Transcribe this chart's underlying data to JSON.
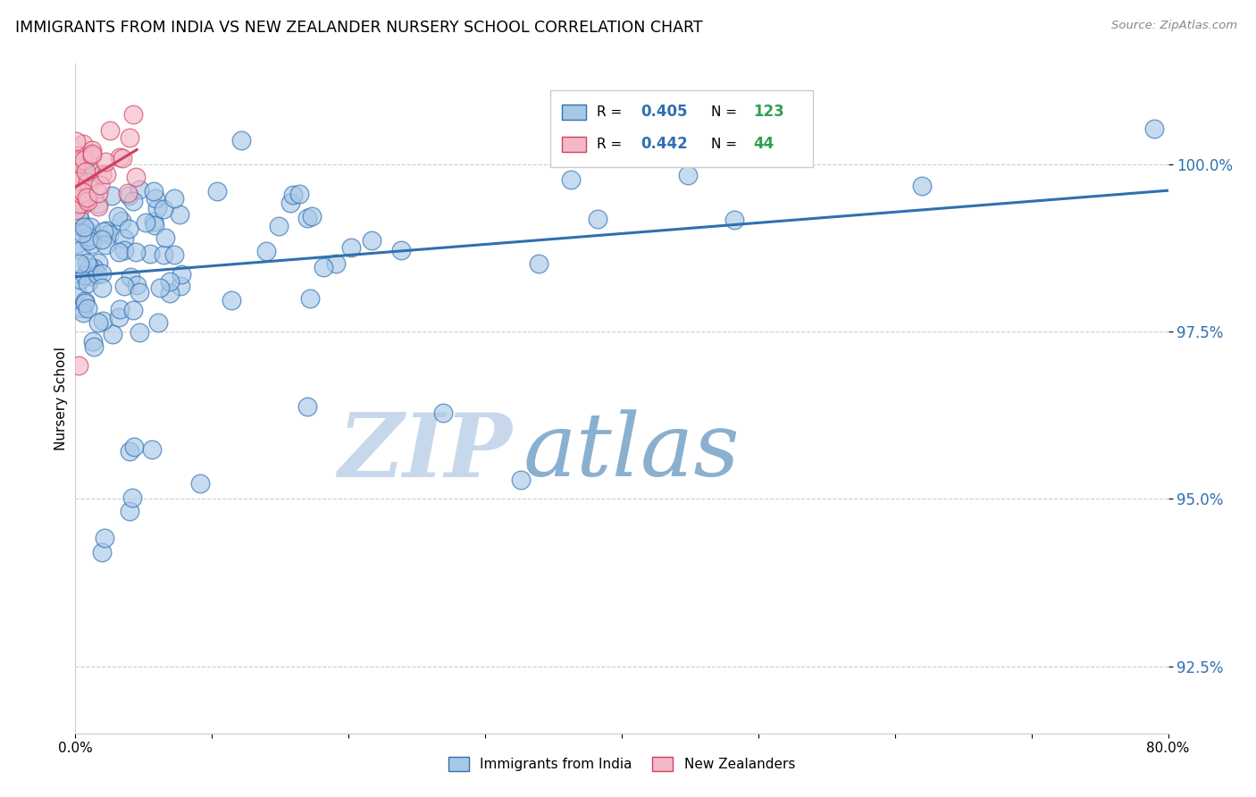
{
  "title": "IMMIGRANTS FROM INDIA VS NEW ZEALANDER NURSERY SCHOOL CORRELATION CHART",
  "source": "Source: ZipAtlas.com",
  "ylabel": "Nursery School",
  "yticks": [
    92.5,
    95.0,
    97.5,
    100.0
  ],
  "ytick_labels": [
    "92.5%",
    "95.0%",
    "97.5%",
    "100.0%"
  ],
  "xmin": 0.0,
  "xmax": 80.0,
  "ymin": 91.5,
  "ymax": 101.5,
  "legend_r1": "R = 0.405",
  "legend_n1": "N = 123",
  "legend_r2": "R = 0.442",
  "legend_n2": "N = 44",
  "blue_color": "#a8c8e8",
  "pink_color": "#f4b8c8",
  "trendline_blue": "#3070b0",
  "trendline_pink": "#d04060",
  "legend_r_color": "#3070b0",
  "legend_n_color": "#30a050",
  "watermark_zip": "ZIP",
  "watermark_atlas": "atlas",
  "watermark_color_zip": "#c8d8ec",
  "watermark_color_atlas": "#8ab0d0"
}
